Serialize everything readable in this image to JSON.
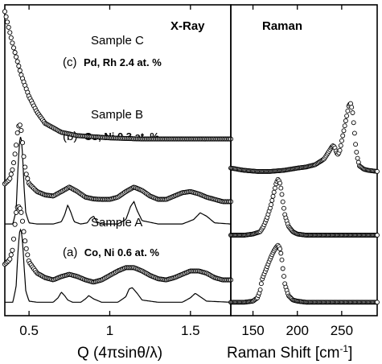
{
  "chart_data": [
    {
      "type": "scatter",
      "title": "X-Ray",
      "xlabel": "Q (4πsinθ/λ)",
      "ylabel": "",
      "xlim": [
        0.35,
        1.75
      ],
      "x_ticks": [
        "0.5",
        "1",
        "1.5"
      ],
      "x_tick_values": [
        0.5,
        1.0,
        1.5
      ],
      "y_axis_numbers_shown": false,
      "series": [
        {
          "label_name": "Sample C",
          "label_letter": "(c)",
          "label_comp": "Pd, Rh 2.4 at. %",
          "x": [
            0.35,
            0.4,
            0.45,
            0.5,
            0.55,
            0.6,
            0.7,
            0.8,
            0.9,
            1.0,
            1.2,
            1.4,
            1.6,
            1.75
          ],
          "y": [
            10.0,
            8.5,
            7.2,
            6.2,
            5.5,
            5.0,
            4.6,
            4.45,
            4.4,
            4.35,
            4.3,
            4.3,
            4.3,
            4.3
          ]
        },
        {
          "label_name": "Sample B",
          "label_letter": "(b)",
          "label_comp": "Co, Ni 0.3 at. %",
          "x": [
            0.35,
            0.38,
            0.4,
            0.42,
            0.43,
            0.44,
            0.45,
            0.46,
            0.47,
            0.48,
            0.5,
            0.55,
            0.6,
            0.65,
            0.7,
            0.75,
            0.8,
            0.85,
            0.9,
            0.95,
            1.0,
            1.05,
            1.1,
            1.15,
            1.2,
            1.25,
            1.3,
            1.35,
            1.4,
            1.45,
            1.5,
            1.55,
            1.6,
            1.65,
            1.7,
            1.75
          ],
          "y": [
            2.3,
            2.5,
            3.0,
            4.0,
            4.7,
            5.0,
            4.8,
            4.1,
            3.3,
            2.8,
            2.3,
            1.95,
            1.8,
            1.75,
            1.95,
            2.15,
            1.95,
            1.7,
            1.62,
            1.6,
            1.6,
            1.7,
            1.95,
            2.15,
            2.0,
            1.75,
            1.6,
            1.6,
            1.75,
            1.9,
            1.95,
            1.85,
            1.7,
            1.6,
            1.5,
            1.5
          ]
        },
        {
          "label_name": "Sample A",
          "label_letter": "(a)",
          "label_comp": "Co, Ni 0.6 at. %",
          "x": [
            0.35,
            0.38,
            0.4,
            0.41,
            0.42,
            0.43,
            0.44,
            0.45,
            0.46,
            0.47,
            0.48,
            0.5,
            0.55,
            0.6,
            0.65,
            0.7,
            0.75,
            0.8,
            0.85,
            0.9,
            0.95,
            1.0,
            1.05,
            1.1,
            1.15,
            1.2,
            1.25,
            1.3,
            1.35,
            1.4,
            1.45,
            1.5,
            1.55,
            1.6,
            1.65,
            1.7,
            1.75
          ],
          "y": [
            -1.3,
            -1.1,
            -0.6,
            0.3,
            1.0,
            1.3,
            1.25,
            1.1,
            0.6,
            0.0,
            -0.5,
            -1.2,
            -1.7,
            -1.9,
            -2.0,
            -1.85,
            -1.75,
            -1.85,
            -2.0,
            -2.1,
            -2.0,
            -1.8,
            -1.6,
            -1.45,
            -1.45,
            -1.6,
            -1.8,
            -1.95,
            -2.0,
            -1.9,
            -1.75,
            -1.6,
            -1.6,
            -1.7,
            -1.9,
            -2.0,
            -2.0
          ]
        }
      ],
      "calculated": [
        {
          "for": "Sample B",
          "x": [
            0.35,
            0.4,
            0.42,
            0.43,
            0.44,
            0.45,
            0.46,
            0.47,
            0.48,
            0.5,
            0.55,
            0.65,
            0.7,
            0.72,
            0.74,
            0.76,
            0.78,
            0.82,
            0.86,
            0.88,
            0.9,
            0.92,
            0.95,
            1.05,
            1.1,
            1.13,
            1.15,
            1.17,
            1.2,
            1.3,
            1.45,
            1.52,
            1.56,
            1.6,
            1.65,
            1.75
          ],
          "y": [
            0.5,
            0.5,
            1.1,
            2.8,
            4.1,
            4.5,
            3.6,
            2.0,
            1.0,
            0.55,
            0.5,
            0.5,
            0.6,
            0.9,
            1.35,
            1.0,
            0.6,
            0.5,
            0.55,
            0.75,
            0.85,
            0.6,
            0.5,
            0.5,
            0.7,
            1.3,
            1.5,
            1.1,
            0.65,
            0.5,
            0.5,
            0.7,
            1.0,
            0.85,
            0.55,
            0.5
          ]
        },
        {
          "for": "Sample A",
          "x": [
            0.35,
            0.4,
            0.42,
            0.43,
            0.44,
            0.45,
            0.46,
            0.47,
            0.48,
            0.5,
            0.55,
            0.65,
            0.68,
            0.7,
            0.72,
            0.74,
            0.77,
            0.82,
            0.85,
            0.87,
            0.9,
            0.95,
            1.05,
            1.1,
            1.12,
            1.14,
            1.17,
            1.2,
            1.3,
            1.45,
            1.5,
            1.53,
            1.56,
            1.6,
            1.75
          ],
          "y": [
            -3.0,
            -3.0,
            -2.3,
            -0.9,
            0.1,
            0.3,
            -0.3,
            -1.5,
            -2.5,
            -2.95,
            -3.0,
            -3.0,
            -2.8,
            -2.55,
            -2.7,
            -2.9,
            -3.0,
            -3.0,
            -2.85,
            -2.7,
            -2.85,
            -3.0,
            -3.0,
            -2.75,
            -2.4,
            -2.35,
            -2.6,
            -2.9,
            -3.0,
            -3.0,
            -2.8,
            -2.6,
            -2.75,
            -2.95,
            -3.0
          ]
        }
      ]
    },
    {
      "type": "scatter",
      "title": "Raman",
      "xlabel": "Raman Shift [cm",
      "xlabel_sup": "-1",
      "xlabel_end": "]",
      "ylabel": "",
      "xlim": [
        125,
        290
      ],
      "x_ticks": [
        "150",
        "200",
        "250"
      ],
      "x_tick_values": [
        150,
        200,
        250
      ],
      "y_axis_numbers_shown": false,
      "series": [
        {
          "for": "Sample C",
          "x": [
            125,
            140,
            155,
            170,
            185,
            200,
            210,
            220,
            230,
            235,
            238,
            240,
            242,
            244,
            246,
            248,
            252,
            256,
            258,
            260,
            262,
            264,
            266,
            268,
            270,
            275,
            280,
            290
          ],
          "y": [
            3.0,
            2.9,
            2.85,
            2.85,
            2.9,
            3.0,
            3.05,
            3.15,
            3.4,
            3.7,
            3.9,
            4.0,
            3.95,
            3.7,
            3.6,
            3.8,
            4.6,
            5.4,
            5.8,
            5.9,
            5.6,
            4.8,
            3.9,
            3.4,
            3.1,
            2.95,
            2.9,
            2.85
          ]
        },
        {
          "for": "Sample B",
          "x": [
            125,
            140,
            150,
            158,
            162,
            166,
            170,
            173,
            176,
            178,
            180,
            182,
            184,
            186,
            190,
            195,
            200,
            210,
            230,
            260,
            290
          ],
          "y": [
            0.0,
            0.0,
            0.05,
            0.15,
            0.4,
            0.8,
            1.3,
            1.8,
            2.3,
            2.5,
            2.4,
            2.0,
            1.4,
            0.9,
            0.4,
            0.15,
            0.05,
            0.0,
            0.0,
            0.0,
            0.0
          ]
        },
        {
          "for": "Sample A",
          "x": [
            125,
            140,
            150,
            155,
            158,
            160,
            163,
            166,
            170,
            173,
            176,
            178,
            180,
            182,
            184,
            186,
            190,
            195,
            200,
            210,
            230,
            260,
            290
          ],
          "y": [
            -3.0,
            -3.0,
            -2.95,
            -2.8,
            -2.5,
            -2.0,
            -1.7,
            -1.4,
            -1.0,
            -0.75,
            -0.55,
            -0.45,
            -0.55,
            -0.9,
            -1.6,
            -2.2,
            -2.7,
            -2.9,
            -2.95,
            -3.0,
            -3.0,
            -3.0,
            -3.0
          ]
        }
      ]
    }
  ]
}
